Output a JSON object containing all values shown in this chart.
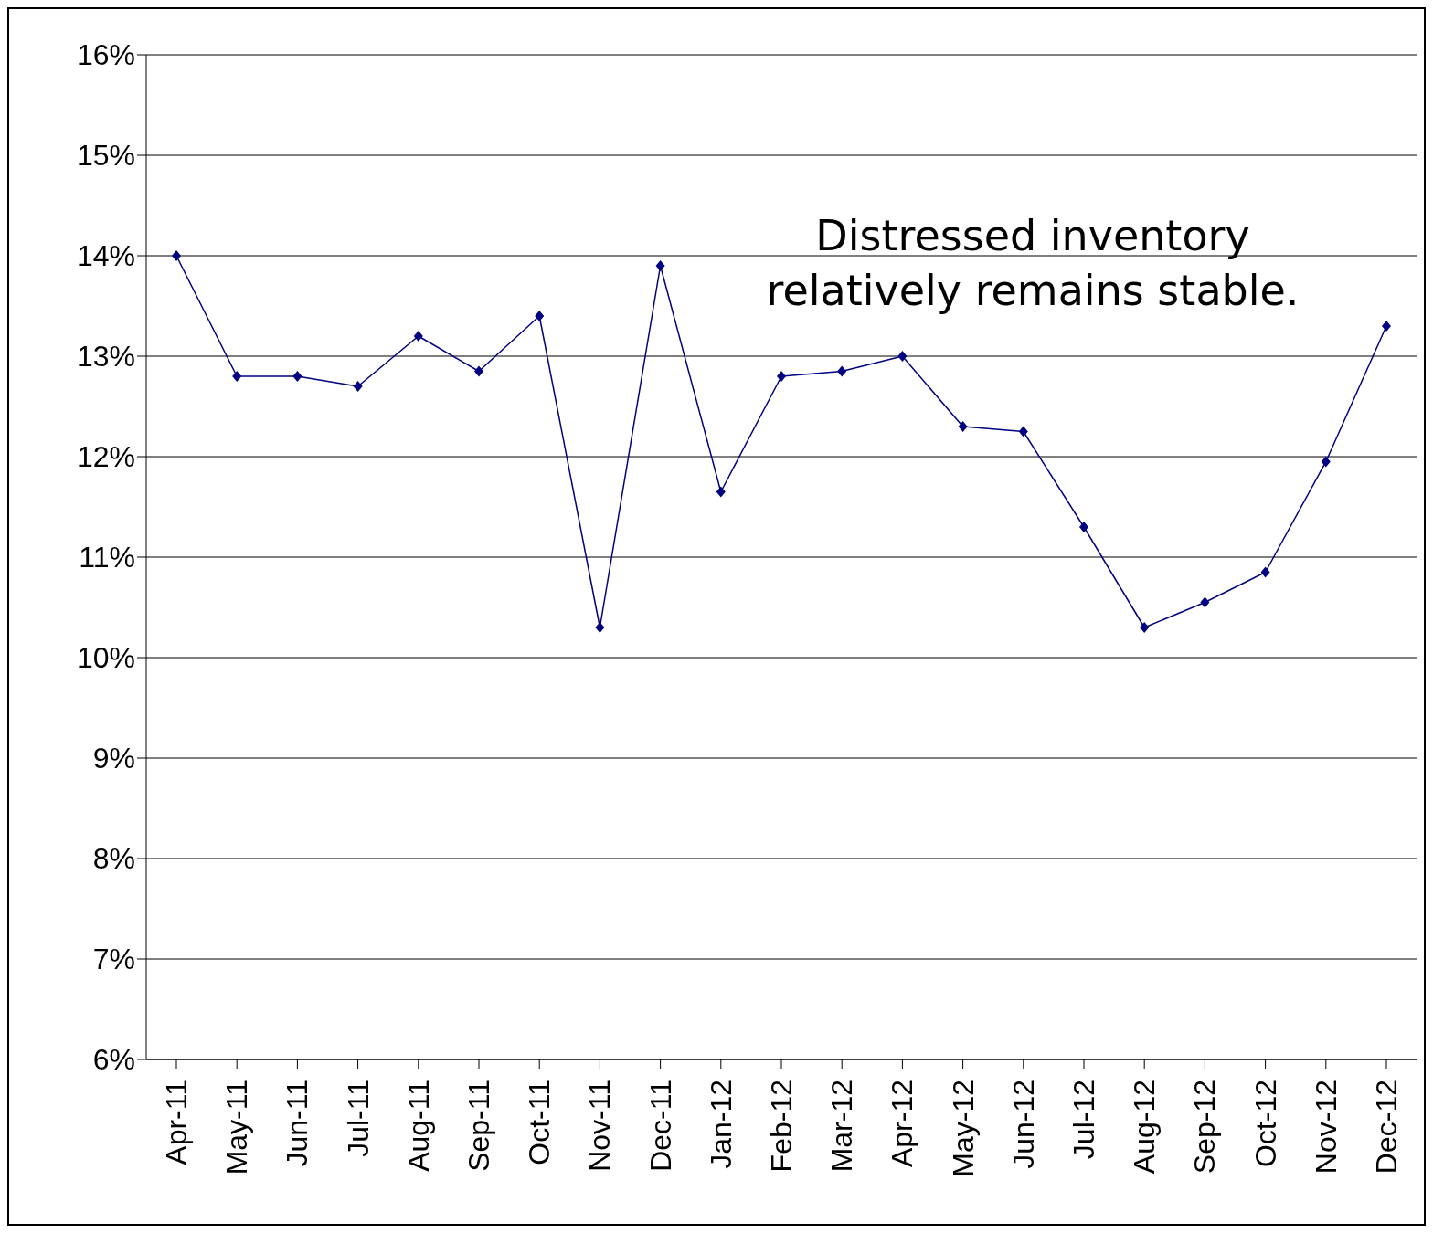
{
  "chart_data": {
    "type": "line",
    "categories": [
      "Apr-11",
      "May-11",
      "Jun-11",
      "Jul-11",
      "Aug-11",
      "Sep-11",
      "Oct-11",
      "Nov-11",
      "Dec-11",
      "Jan-12",
      "Feb-12",
      "Mar-12",
      "Apr-12",
      "May-12",
      "Jun-12",
      "Jul-12",
      "Aug-12",
      "Sep-12",
      "Oct-12",
      "Nov-12",
      "Dec-12"
    ],
    "series": [
      {
        "color": "#000080",
        "values": [
          14.0,
          12.8,
          12.8,
          12.7,
          13.2,
          12.85,
          13.4,
          10.3,
          13.9,
          11.65,
          12.8,
          12.85,
          13.0,
          12.3,
          12.25,
          11.3,
          10.3,
          10.55,
          10.85,
          11.95,
          13.3
        ]
      }
    ],
    "ylim": [
      6,
      16
    ],
    "yticks": [
      {
        "value": 6,
        "label": "6%"
      },
      {
        "value": 7,
        "label": "7%"
      },
      {
        "value": 8,
        "label": "8%"
      },
      {
        "value": 9,
        "label": "9%"
      },
      {
        "value": 10,
        "label": "10%"
      },
      {
        "value": 11,
        "label": "11%"
      },
      {
        "value": 12,
        "label": "12%"
      },
      {
        "value": 13,
        "label": "13%"
      },
      {
        "value": 14,
        "label": "14%"
      },
      {
        "value": 15,
        "label": "15%"
      },
      {
        "value": 16,
        "label": "16%"
      }
    ],
    "grid": "y",
    "marker": "diamond",
    "line_style": "solid",
    "annotations": [
      "Distressed inventory relatively remains stable."
    ]
  }
}
